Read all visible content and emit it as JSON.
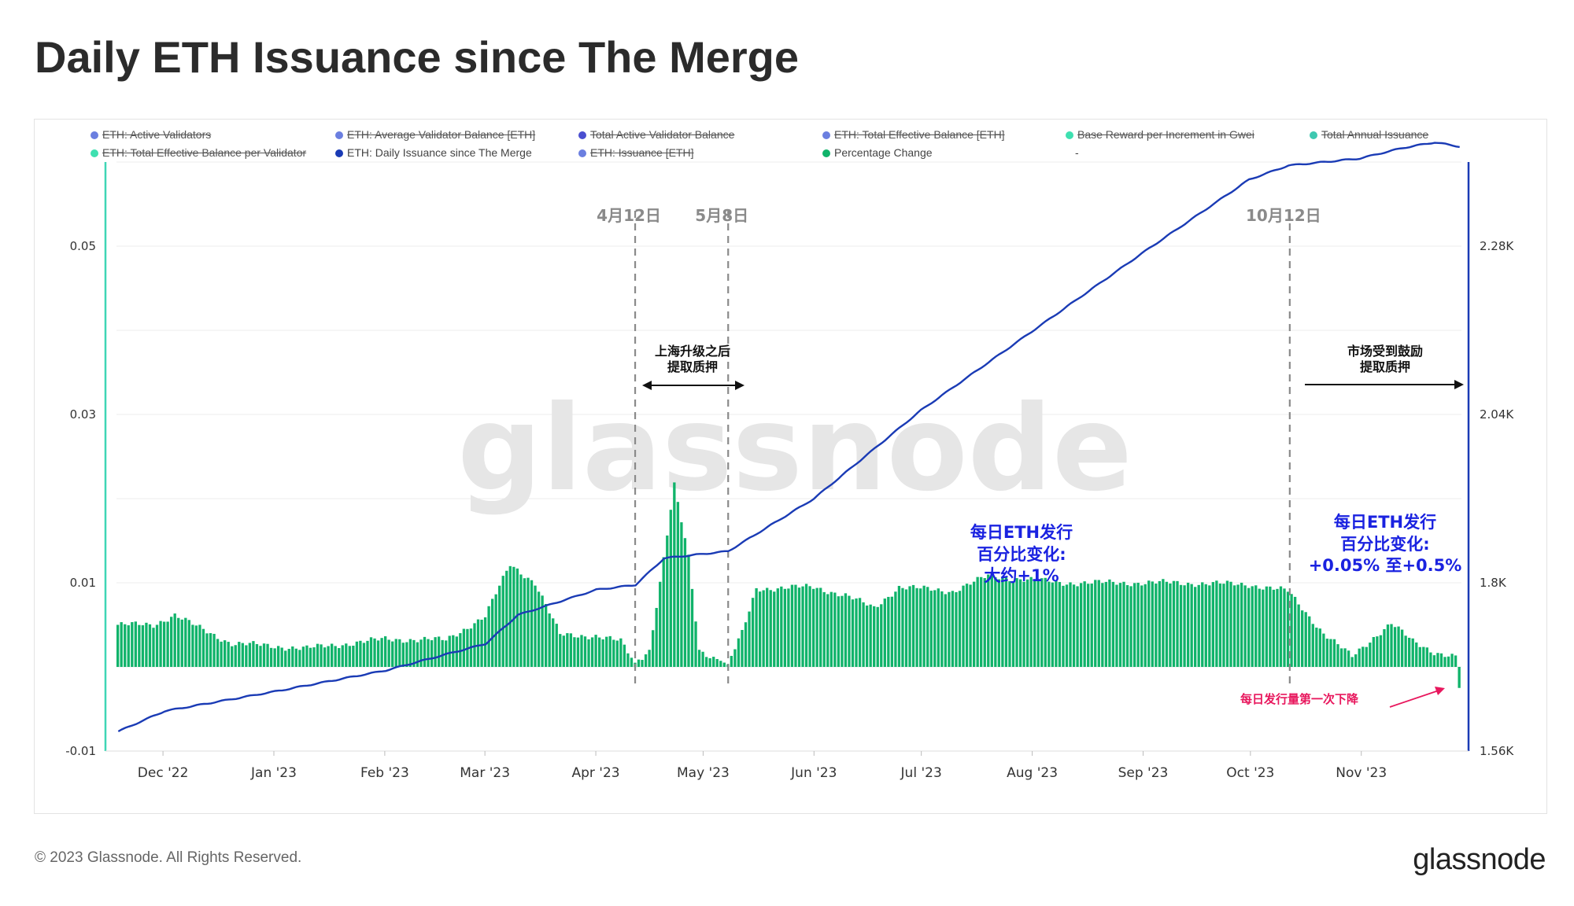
{
  "page": {
    "title": "Daily ETH Issuance since The Merge",
    "footer": "© 2023 Glassnode. All Rights Reserved.",
    "brand": "glassnode",
    "watermark": "glassnode"
  },
  "legend": [
    {
      "label": "ETH: Active Validators",
      "color": "#6b7fe0",
      "active": false
    },
    {
      "label": "ETH: Average Validator Balance [ETH]",
      "color": "#6b7fe0",
      "active": false
    },
    {
      "label": "Total Active Validator Balance",
      "color": "#4a4fd0",
      "active": false
    },
    {
      "label": "ETH: Total Effective Balance [ETH]",
      "color": "#6b7fe0",
      "active": false
    },
    {
      "label": "Base Reward per Increment in Gwei",
      "color": "#3ee0b0",
      "active": false
    },
    {
      "label": "Total Annual Issuance",
      "color": "#3ec8b0",
      "active": false
    },
    {
      "label": "ETH: Total Effective Balance per Validator",
      "color": "#3ee0b0",
      "active": false
    },
    {
      "label": "ETH: Daily Issuance since The Merge",
      "color": "#1a3bb5",
      "active": true
    },
    {
      "label": "ETH: Issuance [ETH]",
      "color": "#6b7fe0",
      "active": false
    },
    {
      "label": "Percentage Change",
      "color": "#10b36a",
      "active": true
    },
    {
      "label": "-",
      "color": "",
      "active": true
    }
  ],
  "chart_data": {
    "type": "line+bar",
    "x_ticks": [
      "Dec '22",
      "Jan '23",
      "Feb '23",
      "Mar '23",
      "Apr '23",
      "May '23",
      "Jun '23",
      "Jul '23",
      "Aug '23",
      "Sep '23",
      "Oct '23",
      "Nov '23"
    ],
    "y_left": {
      "ticks": [
        "0.05",
        "0.03",
        "0.01",
        "-0.01"
      ],
      "values": [
        0.05,
        0.03,
        0.01,
        -0.01
      ],
      "range": [
        -0.01,
        0.06
      ]
    },
    "y_right": {
      "ticks": [
        "2.28K",
        "2.04K",
        "1.8K",
        "1.56K"
      ],
      "values": [
        2280,
        2040,
        1800,
        1560
      ],
      "range": [
        1560,
        2400
      ]
    },
    "date_start": "2022-11-18",
    "date_end": "2023-11-29",
    "series": [
      {
        "name": "ETH: Daily Issuance since The Merge",
        "axis": "right",
        "color": "#1a3bb5",
        "keypoints": [
          [
            "2022-11-18",
            1588
          ],
          [
            "2022-12-01",
            1617
          ],
          [
            "2023-01-01",
            1645
          ],
          [
            "2023-02-01",
            1675
          ],
          [
            "2023-03-01",
            1713
          ],
          [
            "2023-03-10",
            1754
          ],
          [
            "2023-04-01",
            1790
          ],
          [
            "2023-04-12",
            1797
          ],
          [
            "2023-04-20",
            1835
          ],
          [
            "2023-05-08",
            1845
          ],
          [
            "2023-06-01",
            1920
          ],
          [
            "2023-07-01",
            2046
          ],
          [
            "2023-08-01",
            2158
          ],
          [
            "2023-09-01",
            2270
          ],
          [
            "2023-10-01",
            2375
          ],
          [
            "2023-10-12",
            2395
          ],
          [
            "2023-11-01",
            2405
          ],
          [
            "2023-11-13",
            2420
          ],
          [
            "2023-11-22",
            2428
          ],
          [
            "2023-11-29",
            2422
          ]
        ]
      },
      {
        "name": "Percentage Change",
        "axis": "left",
        "color": "#10b36a",
        "keypoints": [
          [
            "2022-11-18",
            0.005
          ],
          [
            "2022-11-28",
            0.005
          ],
          [
            "2022-12-04",
            0.0062
          ],
          [
            "2022-12-10",
            0.0048
          ],
          [
            "2022-12-20",
            0.0028
          ],
          [
            "2023-01-10",
            0.0022
          ],
          [
            "2023-02-01",
            0.0033
          ],
          [
            "2023-02-18",
            0.0032
          ],
          [
            "2023-03-01",
            0.006
          ],
          [
            "2023-03-08",
            0.0122
          ],
          [
            "2023-03-15",
            0.01
          ],
          [
            "2023-03-22",
            0.0038
          ],
          [
            "2023-04-01",
            0.0037
          ],
          [
            "2023-04-08",
            0.003
          ],
          [
            "2023-04-12",
            0.0005
          ],
          [
            "2023-04-16",
            0.002
          ],
          [
            "2023-04-19",
            0.01
          ],
          [
            "2023-04-23",
            0.0215
          ],
          [
            "2023-04-27",
            0.013
          ],
          [
            "2023-04-30",
            0.002
          ],
          [
            "2023-05-08",
            0.0003
          ],
          [
            "2023-05-12",
            0.004
          ],
          [
            "2023-05-16",
            0.0093
          ],
          [
            "2023-06-01",
            0.0095
          ],
          [
            "2023-06-10",
            0.0085
          ],
          [
            "2023-06-18",
            0.007
          ],
          [
            "2023-06-25",
            0.0095
          ],
          [
            "2023-07-10",
            0.009
          ],
          [
            "2023-07-20",
            0.0108
          ],
          [
            "2023-08-10",
            0.01
          ],
          [
            "2023-09-10",
            0.01
          ],
          [
            "2023-10-01",
            0.0098
          ],
          [
            "2023-10-12",
            0.009
          ],
          [
            "2023-10-22",
            0.004
          ],
          [
            "2023-10-30",
            0.0012
          ],
          [
            "2023-11-05",
            0.0035
          ],
          [
            "2023-11-10",
            0.0052
          ],
          [
            "2023-11-16",
            0.003
          ],
          [
            "2023-11-22",
            0.0018
          ],
          [
            "2023-11-28",
            0.0012
          ],
          [
            "2023-11-29",
            -0.0025
          ]
        ]
      }
    ],
    "markers": [
      {
        "label": "4月12日",
        "date": "2023-04-12"
      },
      {
        "label": "5月8日",
        "date": "2023-05-08"
      },
      {
        "label": "10月12日",
        "date": "2023-10-12"
      }
    ],
    "annotations": {
      "shanghai_line1": "上海升级之后",
      "shanghai_line2": "提取质押",
      "market_line1": "市场受到鼓励",
      "market_line2": "提取质押",
      "mid_line1": "每日ETH发行",
      "mid_line2": "百分比变化:",
      "mid_line3": "大约+1%",
      "right_line1": "每日ETH发行",
      "right_line2": "百分比变化:",
      "right_line3": "+0.05% 至+0.5%",
      "decline": "每日发行量第一次下降"
    },
    "colors": {
      "line": "#1a3bb5",
      "bars": "#10b36a",
      "left_axis": "#3fd6b5",
      "right_axis": "#1a3bb5",
      "annotation_blue": "#1a22e0",
      "annotation_pink": "#e8175d",
      "marker": "#888888"
    }
  }
}
